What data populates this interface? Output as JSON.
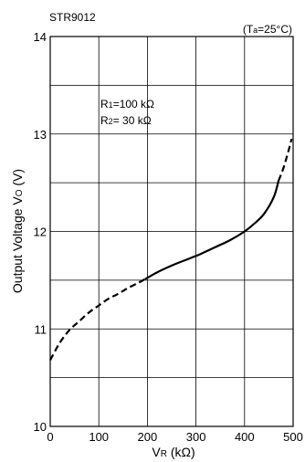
{
  "chart_data": {
    "type": "line",
    "part_label": "STR9012",
    "condition": {
      "main": "(T",
      "sub": "a",
      "tail": "=25°C)"
    },
    "ylabel": {
      "main": "Output Voltage V",
      "sub": "O",
      "tail": " (V)"
    },
    "xlabel": {
      "main": "V",
      "sub": "R",
      "tail": " (kΩ)"
    },
    "xlim": [
      0,
      500
    ],
    "ylim": [
      10,
      14
    ],
    "x_ticks": [
      "0",
      "100",
      "200",
      "300",
      "400",
      "500"
    ],
    "y_ticks": [
      "10",
      "11",
      "12",
      "13",
      "14"
    ],
    "grid": true,
    "annotations": {
      "r1": {
        "main": "R",
        "sub": "1",
        "tail": "=100 kΩ"
      },
      "r2": {
        "main": "R",
        "sub": "2",
        "tail": "=  30 kΩ"
      }
    },
    "series": [
      {
        "style": "dashed",
        "x": [
          0,
          20,
          40,
          60,
          80,
          100,
          120,
          140,
          160,
          180,
          195
        ],
        "y": [
          10.68,
          10.86,
          10.99,
          11.08,
          11.17,
          11.24,
          11.31,
          11.36,
          11.42,
          11.47,
          11.51
        ]
      },
      {
        "style": "solid",
        "x": [
          195,
          220,
          250,
          280,
          310,
          340,
          370,
          400,
          420,
          440,
          460,
          470
        ],
        "y": [
          11.51,
          11.58,
          11.65,
          11.71,
          11.77,
          11.84,
          11.91,
          12.0,
          12.08,
          12.18,
          12.35,
          12.52
        ]
      },
      {
        "style": "dashed",
        "x": [
          470,
          480,
          490,
          497
        ],
        "y": [
          12.52,
          12.65,
          12.82,
          12.95
        ]
      }
    ]
  }
}
